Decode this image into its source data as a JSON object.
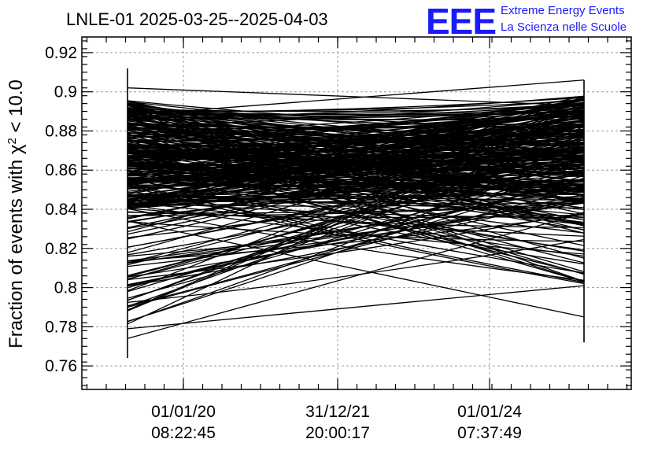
{
  "header": {
    "title": "LNLE-01 2025-03-25--2025-04-03",
    "logo_text": "EEE",
    "logo_line1": "Extreme Energy Events",
    "logo_line2": "La Scienza nelle Scuole",
    "logo_color": "#1a1aff"
  },
  "chart_data": {
    "type": "line",
    "title": "LNLE-01 2025-03-25--2025-04-03",
    "xlabel": "",
    "ylabel_main": "Fraction of events with χ",
    "ylabel_sup": "2",
    "ylabel_tail": " < 10.0",
    "ylim": [
      0.748,
      0.928
    ],
    "y_ticks": [
      0.76,
      0.78,
      0.8,
      0.82,
      0.84,
      0.86,
      0.88,
      0.9,
      0.92
    ],
    "y_tick_labels": [
      "0.76",
      "0.78",
      "0.8",
      "0.82",
      "0.84",
      "0.86",
      "0.88",
      "0.9",
      "0.92"
    ],
    "x_ticks": [
      {
        "date": "01/01/20",
        "time": "08:22:45"
      },
      {
        "date": "31/12/21",
        "time": "20:00:17"
      },
      {
        "date": "01/01/24",
        "time": "07:37:49"
      }
    ],
    "x_range_note": "points span from before the first labeled tick to after the last",
    "grid": true,
    "legend": "none",
    "line_color": "#000000",
    "num_segments": 320,
    "left_error_range": [
      0.764,
      0.912
    ],
    "right_error_range": [
      0.772,
      0.906
    ],
    "left_dense_band": [
      0.84,
      0.896
    ],
    "right_dense_band": [
      0.843,
      0.898
    ],
    "left_outliers": [
      0.902,
      0.79,
      0.78,
      0.774,
      0.8
    ],
    "right_outliers": [
      0.906,
      0.801,
      0.785,
      0.803
    ]
  }
}
